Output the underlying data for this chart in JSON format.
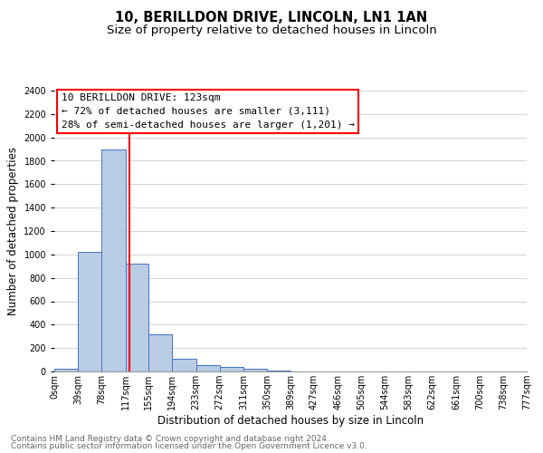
{
  "title": "10, BERILLDON DRIVE, LINCOLN, LN1 1AN",
  "subtitle": "Size of property relative to detached houses in Lincoln",
  "xlabel": "Distribution of detached houses by size in Lincoln",
  "ylabel": "Number of detached properties",
  "bar_edges": [
    0,
    39,
    78,
    117,
    155,
    194,
    233,
    272,
    311,
    350,
    389,
    427,
    466,
    505,
    544,
    583,
    622,
    661,
    700,
    738,
    777
  ],
  "bar_heights": [
    25,
    1025,
    1900,
    920,
    320,
    110,
    55,
    35,
    20,
    5,
    0,
    0,
    0,
    0,
    0,
    0,
    0,
    0,
    0,
    0
  ],
  "bar_color": "#b8cce4",
  "bar_edge_color": "#4472c4",
  "property_line_x": 123,
  "property_line_color": "#ff0000",
  "annotation_line1": "10 BERILLDON DRIVE: 123sqm",
  "annotation_line2": "← 72% of detached houses are smaller (3,111)",
  "annotation_line3": "28% of semi-detached houses are larger (1,201) →",
  "annotation_box_color": "#ffffff",
  "annotation_box_edge": "#ff0000",
  "ylim": [
    0,
    2400
  ],
  "yticks": [
    0,
    200,
    400,
    600,
    800,
    1000,
    1200,
    1400,
    1600,
    1800,
    2000,
    2200,
    2400
  ],
  "xtick_labels": [
    "0sqm",
    "39sqm",
    "78sqm",
    "117sqm",
    "155sqm",
    "194sqm",
    "233sqm",
    "272sqm",
    "311sqm",
    "350sqm",
    "389sqm",
    "427sqm",
    "466sqm",
    "505sqm",
    "544sqm",
    "583sqm",
    "622sqm",
    "661sqm",
    "700sqm",
    "738sqm",
    "777sqm"
  ],
  "footer_line1": "Contains HM Land Registry data © Crown copyright and database right 2024.",
  "footer_line2": "Contains public sector information licensed under the Open Government Licence v3.0.",
  "bg_color": "#ffffff",
  "grid_color": "#cccccc",
  "title_fontsize": 10.5,
  "subtitle_fontsize": 9.5,
  "axis_label_fontsize": 8.5,
  "tick_fontsize": 7,
  "annotation_fontsize": 8,
  "footer_fontsize": 6.5
}
